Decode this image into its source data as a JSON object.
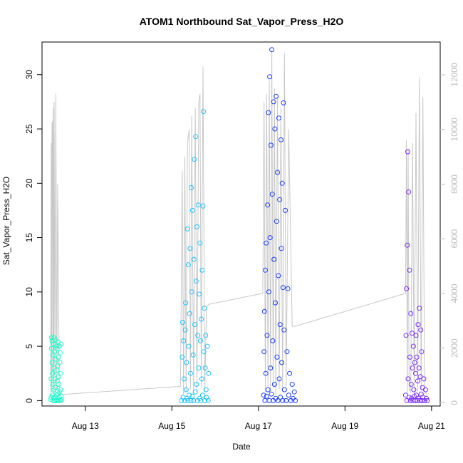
{
  "chart_data": {
    "type": "scatter",
    "title": "ATOM1 Northbound Sat_Vapor_Press_H2O",
    "xlabel": "Date",
    "ylabel": "Sat_Vapor_Press_H2O",
    "x_ticks": [
      "Aug 13",
      "Aug 15",
      "Aug 17",
      "Aug 19",
      "Aug 21"
    ],
    "x_tick_values": [
      13,
      15,
      17,
      19,
      21
    ],
    "xlim": [
      12.0,
      21.2
    ],
    "ylim": [
      -0.5,
      33
    ],
    "y_ticks": [
      0,
      5,
      10,
      15,
      20,
      25,
      30
    ],
    "y2_ticks": [
      0,
      2000,
      4000,
      6000,
      8000,
      10000,
      12000
    ],
    "y2lim": [
      -120,
      13200
    ],
    "colors": {
      "flight1": "#1fffcc",
      "flight2": "#19c4ff",
      "flight3": "#1a3cff",
      "flight4": "#7a2cff",
      "secondary": "#c8c8c8"
    },
    "flights": [
      {
        "color": "#1fffcc",
        "time_range": [
          12.2,
          12.45
        ],
        "samples": [
          [
            12.2,
            0.1
          ],
          [
            12.21,
            0.3
          ],
          [
            12.21,
            2.0
          ],
          [
            12.22,
            5.8
          ],
          [
            12.22,
            4.8
          ],
          [
            12.23,
            5.5
          ],
          [
            12.23,
            3.5
          ],
          [
            12.24,
            2.5
          ],
          [
            12.24,
            0.5
          ],
          [
            12.25,
            1.5
          ],
          [
            12.25,
            4.2
          ],
          [
            12.26,
            0.0
          ],
          [
            12.26,
            5.2
          ],
          [
            12.27,
            0.2
          ],
          [
            12.27,
            3.0
          ],
          [
            12.28,
            1.0
          ],
          [
            12.28,
            5.8
          ],
          [
            12.29,
            0.0
          ],
          [
            12.29,
            4.5
          ],
          [
            12.3,
            2.0
          ],
          [
            12.3,
            0.3
          ],
          [
            12.31,
            5.6
          ],
          [
            12.31,
            1.2
          ],
          [
            12.32,
            0.0
          ],
          [
            12.32,
            3.8
          ],
          [
            12.33,
            0.5
          ],
          [
            12.33,
            5.0
          ],
          [
            12.34,
            2.8
          ],
          [
            12.34,
            0.1
          ],
          [
            12.35,
            4.8
          ],
          [
            12.35,
            1.8
          ],
          [
            12.36,
            0.0
          ],
          [
            12.36,
            3.2
          ],
          [
            12.37,
            5.4
          ],
          [
            12.37,
            0.6
          ],
          [
            12.38,
            2.2
          ],
          [
            12.38,
            4.0
          ],
          [
            12.39,
            0.0
          ],
          [
            12.39,
            1.5
          ],
          [
            12.4,
            5.0
          ],
          [
            12.4,
            0.3
          ],
          [
            12.41,
            3.5
          ],
          [
            12.41,
            0.8
          ],
          [
            12.42,
            2.5
          ],
          [
            12.42,
            4.4
          ],
          [
            12.43,
            0.0
          ],
          [
            12.43,
            1.0
          ],
          [
            12.44,
            0.4
          ],
          [
            12.44,
            5.2
          ],
          [
            12.45,
            0.1
          ]
        ],
        "altitude": [
          [
            12.2,
            200
          ],
          [
            12.21,
            9500
          ],
          [
            12.22,
            400
          ],
          [
            12.23,
            10200
          ],
          [
            12.24,
            10300
          ],
          [
            12.25,
            600
          ],
          [
            12.26,
            10800
          ],
          [
            12.27,
            200
          ],
          [
            12.28,
            11000
          ],
          [
            12.3,
            300
          ],
          [
            12.32,
            11300
          ],
          [
            12.34,
            500
          ],
          [
            12.36,
            8000
          ],
          [
            12.4,
            400
          ],
          [
            12.45,
            300
          ]
        ]
      },
      {
        "color": "#19c4ff",
        "time_range": [
          15.2,
          15.85
        ],
        "samples": [
          [
            15.22,
            0.0
          ],
          [
            15.24,
            4.0
          ],
          [
            15.25,
            7.2
          ],
          [
            15.26,
            0.3
          ],
          [
            15.27,
            5.5
          ],
          [
            15.28,
            2.0
          ],
          [
            15.3,
            0.0
          ],
          [
            15.31,
            6.5
          ],
          [
            15.32,
            9.0
          ],
          [
            15.33,
            1.0
          ],
          [
            15.34,
            3.5
          ],
          [
            15.35,
            0.2
          ],
          [
            15.36,
            15.8
          ],
          [
            15.37,
            0.0
          ],
          [
            15.38,
            12.5
          ],
          [
            15.39,
            5.0
          ],
          [
            15.4,
            0.5
          ],
          [
            15.41,
            8.0
          ],
          [
            15.42,
            14.0
          ],
          [
            15.43,
            2.5
          ],
          [
            15.44,
            0.0
          ],
          [
            15.45,
            19.6
          ],
          [
            15.46,
            10.0
          ],
          [
            15.47,
            0.4
          ],
          [
            15.48,
            17.5
          ],
          [
            15.49,
            4.2
          ],
          [
            15.5,
            0.0
          ],
          [
            15.51,
            13.0
          ],
          [
            15.52,
            22.2
          ],
          [
            15.53,
            7.0
          ],
          [
            15.54,
            0.8
          ],
          [
            15.55,
            24.3
          ],
          [
            15.56,
            11.0
          ],
          [
            15.57,
            1.5
          ],
          [
            15.58,
            16.0
          ],
          [
            15.59,
            0.0
          ],
          [
            15.6,
            6.0
          ],
          [
            15.61,
            18.0
          ],
          [
            15.62,
            3.0
          ],
          [
            15.63,
            9.8
          ],
          [
            15.64,
            0.2
          ],
          [
            15.65,
            14.5
          ],
          [
            15.66,
            5.5
          ],
          [
            15.67,
            0.0
          ],
          [
            15.68,
            7.5
          ],
          [
            15.69,
            2.0
          ],
          [
            15.7,
            12.0
          ],
          [
            15.71,
            0.5
          ],
          [
            15.72,
            17.9
          ],
          [
            15.73,
            26.6
          ],
          [
            15.74,
            4.5
          ],
          [
            15.75,
            8.5
          ],
          [
            15.76,
            0.0
          ],
          [
            15.77,
            3.0
          ],
          [
            15.78,
            6.0
          ],
          [
            15.79,
            1.0
          ],
          [
            15.8,
            0.3
          ],
          [
            15.82,
            5.0
          ],
          [
            15.84,
            0.0
          ],
          [
            15.85,
            2.5
          ]
        ],
        "altitude": [
          [
            15.2,
            600
          ],
          [
            15.24,
            8500
          ],
          [
            15.27,
            300
          ],
          [
            15.3,
            9000
          ],
          [
            15.33,
            400
          ],
          [
            15.36,
            9500
          ],
          [
            15.4,
            10000
          ],
          [
            15.43,
            500
          ],
          [
            15.46,
            10500
          ],
          [
            15.5,
            300
          ],
          [
            15.54,
            10800
          ],
          [
            15.58,
            400
          ],
          [
            15.62,
            11000
          ],
          [
            15.65,
            11300
          ],
          [
            15.68,
            600
          ],
          [
            15.72,
            12300
          ],
          [
            15.76,
            400
          ],
          [
            15.8,
            3500
          ],
          [
            15.85,
            3600
          ]
        ]
      },
      {
        "color": "#1a3cff",
        "time_range": [
          17.1,
          17.85
        ],
        "samples": [
          [
            17.12,
            0.5
          ],
          [
            17.13,
            4.5
          ],
          [
            17.14,
            8.2
          ],
          [
            17.15,
            0.0
          ],
          [
            17.16,
            12.0
          ],
          [
            17.17,
            2.5
          ],
          [
            17.18,
            14.5
          ],
          [
            17.19,
            0.4
          ],
          [
            17.2,
            6.0
          ],
          [
            17.21,
            18.0
          ],
          [
            17.22,
            1.0
          ],
          [
            17.23,
            26.5
          ],
          [
            17.24,
            10.0
          ],
          [
            17.25,
            0.0
          ],
          [
            17.26,
            29.8
          ],
          [
            17.27,
            15.0
          ],
          [
            17.28,
            3.0
          ],
          [
            17.29,
            23.5
          ],
          [
            17.3,
            0.6
          ],
          [
            17.31,
            32.3
          ],
          [
            17.32,
            19.0
          ],
          [
            17.33,
            5.5
          ],
          [
            17.34,
            0.0
          ],
          [
            17.35,
            27.5
          ],
          [
            17.36,
            13.0
          ],
          [
            17.37,
            1.5
          ],
          [
            17.38,
            25.0
          ],
          [
            17.39,
            9.0
          ],
          [
            17.4,
            0.2
          ],
          [
            17.41,
            28.0
          ],
          [
            17.42,
            16.5
          ],
          [
            17.43,
            4.0
          ],
          [
            17.44,
            21.0
          ],
          [
            17.45,
            0.0
          ],
          [
            17.46,
            11.5
          ],
          [
            17.47,
            26.0
          ],
          [
            17.48,
            2.0
          ],
          [
            17.49,
            18.5
          ],
          [
            17.5,
            7.0
          ],
          [
            17.51,
            0.3
          ],
          [
            17.52,
            24.0
          ],
          [
            17.53,
            14.0
          ],
          [
            17.54,
            3.5
          ],
          [
            17.55,
            20.0
          ],
          [
            17.56,
            0.0
          ],
          [
            17.57,
            10.4
          ],
          [
            17.58,
            27.4
          ],
          [
            17.59,
            6.5
          ],
          [
            17.6,
            1.0
          ],
          [
            17.62,
            17.5
          ],
          [
            17.64,
            0.0
          ],
          [
            17.66,
            4.5
          ],
          [
            17.68,
            10.3
          ],
          [
            17.7,
            0.5
          ],
          [
            17.72,
            2.5
          ],
          [
            17.75,
            0.0
          ],
          [
            17.78,
            1.5
          ],
          [
            17.8,
            0.2
          ],
          [
            17.83,
            0.8
          ],
          [
            17.85,
            0.0
          ]
        ],
        "altitude": [
          [
            17.1,
            4000
          ],
          [
            17.13,
            11000
          ],
          [
            17.16,
            400
          ],
          [
            17.19,
            11300
          ],
          [
            17.22,
            600
          ],
          [
            17.25,
            11800
          ],
          [
            17.28,
            400
          ],
          [
            17.31,
            12900
          ],
          [
            17.34,
            500
          ],
          [
            17.37,
            11500
          ],
          [
            17.4,
            300
          ],
          [
            17.44,
            11200
          ],
          [
            17.48,
            500
          ],
          [
            17.52,
            10800
          ],
          [
            17.56,
            400
          ],
          [
            17.6,
            12800
          ],
          [
            17.64,
            600
          ],
          [
            17.7,
            10000
          ],
          [
            17.78,
            2800
          ],
          [
            17.85,
            2800
          ]
        ]
      },
      {
        "color": "#7a2cff",
        "time_range": [
          20.4,
          20.9
        ],
        "samples": [
          [
            20.4,
            0.5
          ],
          [
            20.41,
            6.0
          ],
          [
            20.42,
            10.3
          ],
          [
            20.43,
            0.0
          ],
          [
            20.44,
            14.3
          ],
          [
            20.45,
            22.9
          ],
          [
            20.46,
            2.0
          ],
          [
            20.47,
            19.2
          ],
          [
            20.48,
            0.3
          ],
          [
            20.49,
            12.0
          ],
          [
            20.5,
            4.0
          ],
          [
            20.51,
            0.0
          ],
          [
            20.52,
            8.0
          ],
          [
            20.53,
            1.5
          ],
          [
            20.54,
            0.2
          ],
          [
            20.55,
            6.2
          ],
          [
            20.56,
            3.0
          ],
          [
            20.57,
            0.0
          ],
          [
            20.58,
            5.0
          ],
          [
            20.59,
            1.0
          ],
          [
            20.6,
            0.4
          ],
          [
            20.61,
            3.5
          ],
          [
            20.62,
            0.0
          ],
          [
            20.63,
            2.5
          ],
          [
            20.64,
            6.0
          ],
          [
            20.65,
            0.5
          ],
          [
            20.66,
            4.0
          ],
          [
            20.67,
            0.0
          ],
          [
            20.68,
            1.8
          ],
          [
            20.69,
            7.0
          ],
          [
            20.7,
            0.2
          ],
          [
            20.71,
            3.0
          ],
          [
            20.72,
            8.5
          ],
          [
            20.73,
            0.0
          ],
          [
            20.74,
            2.2
          ],
          [
            20.75,
            6.5
          ],
          [
            20.76,
            0.6
          ],
          [
            20.77,
            4.5
          ],
          [
            20.78,
            0.0
          ],
          [
            20.79,
            1.2
          ],
          [
            20.8,
            0.3
          ],
          [
            20.82,
            2.0
          ],
          [
            20.84,
            0.0
          ],
          [
            20.86,
            1.0
          ],
          [
            20.88,
            0.2
          ],
          [
            20.9,
            0.0
          ]
        ],
        "altitude": [
          [
            20.4,
            4000
          ],
          [
            20.42,
            9600
          ],
          [
            20.44,
            300
          ],
          [
            20.46,
            9300
          ],
          [
            20.48,
            500
          ],
          [
            20.52,
            400
          ],
          [
            20.56,
            9500
          ],
          [
            20.6,
            300
          ],
          [
            20.64,
            10600
          ],
          [
            20.68,
            400
          ],
          [
            20.72,
            11900
          ],
          [
            20.76,
            500
          ],
          [
            20.8,
            11200
          ],
          [
            20.84,
            400
          ],
          [
            20.9,
            300
          ]
        ]
      }
    ],
    "transit_lines": [
      {
        "from": [
          12.45,
          300
        ],
        "to": [
          15.2,
          600
        ]
      },
      {
        "from": [
          15.85,
          3600
        ],
        "to": [
          17.1,
          4000
        ]
      },
      {
        "from": [
          17.85,
          2800
        ],
        "to": [
          20.4,
          4000
        ]
      }
    ]
  }
}
